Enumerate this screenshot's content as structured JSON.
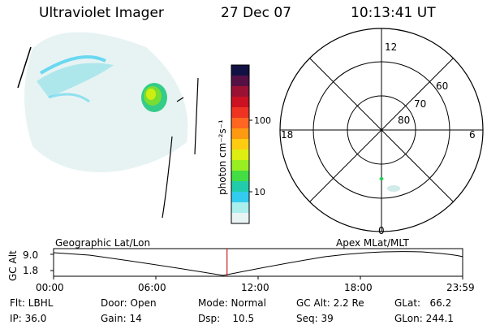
{
  "header": {
    "title": "Ultraviolet Imager",
    "date": "27 Dec 07",
    "time": "10:13:41 UT"
  },
  "colorbar": {
    "label": "photon cm⁻²s⁻¹",
    "ticks": [
      "100",
      "10"
    ],
    "colors": [
      "#111144",
      "#551144",
      "#991133",
      "#cc1122",
      "#ee3322",
      "#ff6622",
      "#ff9911",
      "#ffcc11",
      "#ddee11",
      "#99ee22",
      "#44dd44",
      "#22ccaa",
      "#33ccee",
      "#aaeeee",
      "#e8f4f4"
    ]
  },
  "polar_plot": {
    "mlt_labels": {
      "top": "12",
      "left": "18",
      "right": "6",
      "bottom": "0"
    },
    "lat_labels": [
      "60",
      "70",
      "80"
    ]
  },
  "timeline": {
    "axis_label": "GC Alt",
    "left_title": "Geographic Lat/Lon",
    "right_title": "Apex MLat/MLT",
    "y_ticks": [
      "9.0",
      "1.8"
    ],
    "x_ticks": [
      "00:00",
      "06:00",
      "12:00",
      "18:00",
      "23:59"
    ],
    "current_time_fraction": 0.424
  },
  "info": {
    "flt": "Flt: LBHL",
    "ip": "IP: 36.0",
    "door": "Door: Open",
    "gain": "Gain: 14",
    "mode": "Mode: Normal",
    "dsp": "Dsp:    10.5",
    "gc_alt": "GC Alt: 2.2 Re",
    "seq": "Seq: 39",
    "glat": "GLat:   66.2",
    "glon": "GLon: 244.1"
  }
}
